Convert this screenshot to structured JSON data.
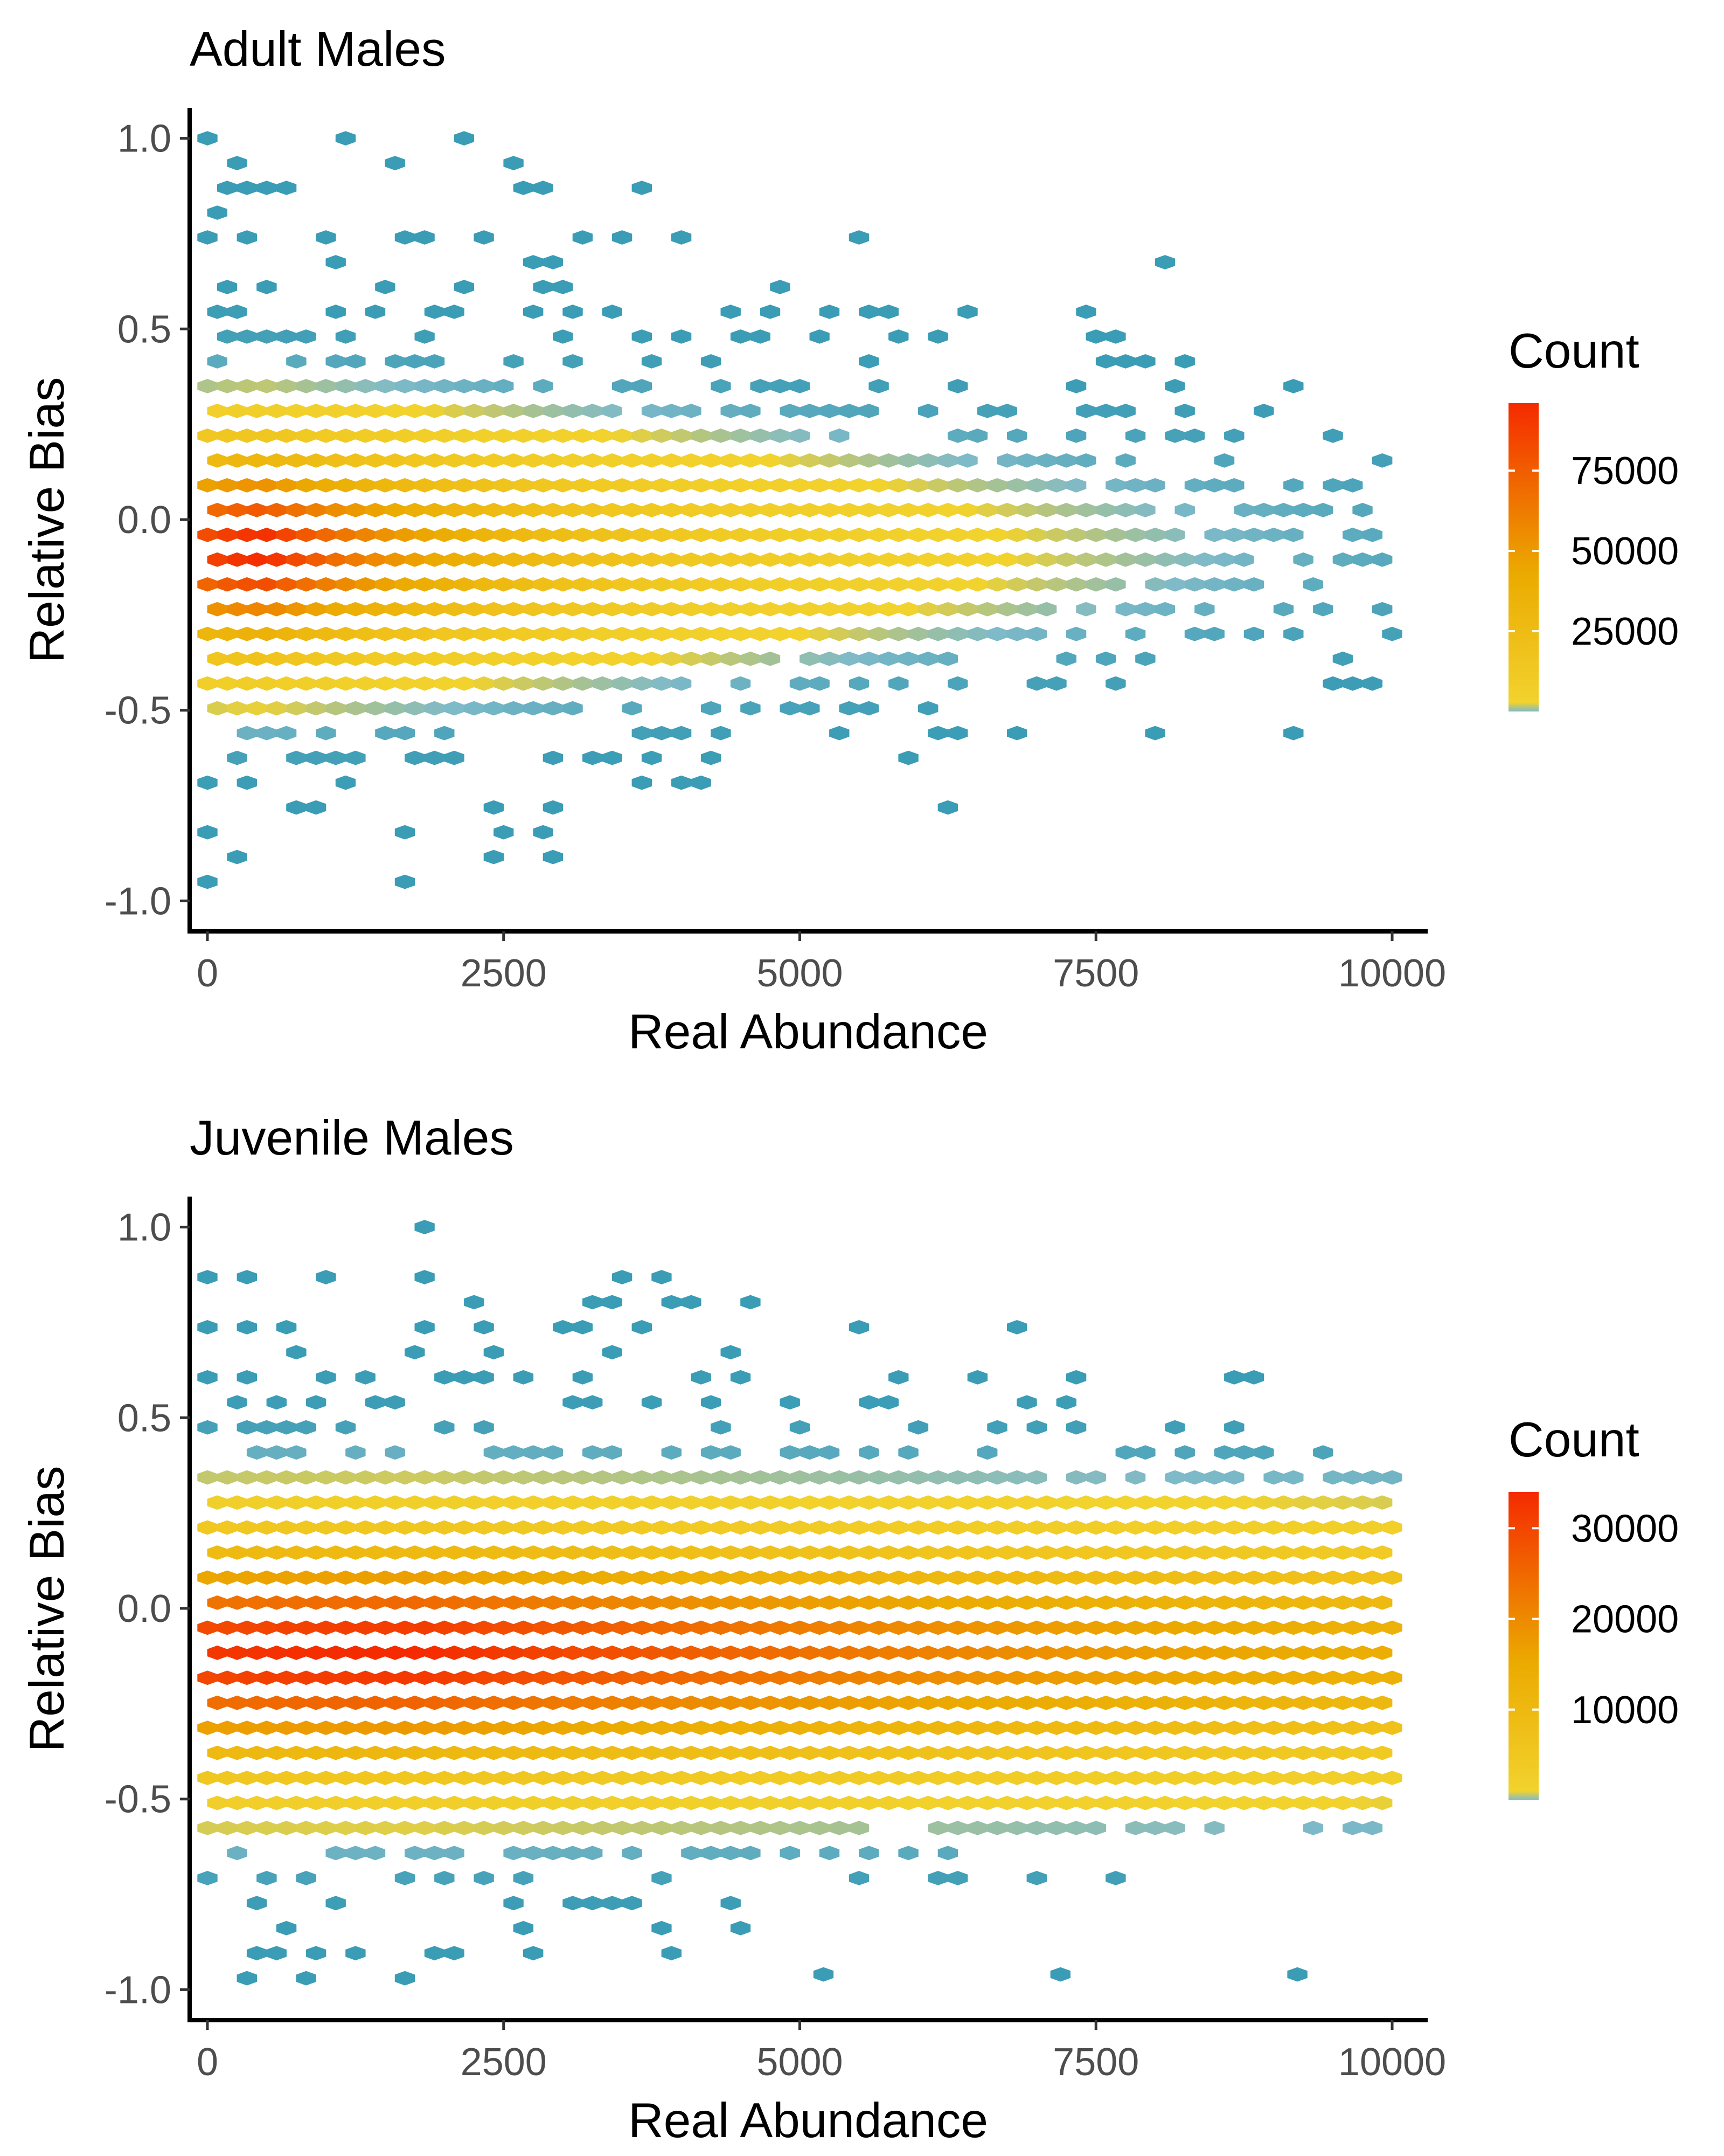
{
  "chart_data": [
    {
      "type": "hexbin",
      "title": "Adult Males",
      "xlabel": "Real Abundance",
      "ylabel": "Relative Bias",
      "xlim": [
        -150,
        10300
      ],
      "ylim": [
        -1.08,
        1.08
      ],
      "x_ticks": [
        0,
        2500,
        5000,
        7500,
        10000
      ],
      "y_ticks": [
        -1.0,
        -0.5,
        0.0,
        0.5,
        1.0
      ],
      "x_tick_labels": [
        "0",
        "2500",
        "5000",
        "7500",
        "10000"
      ],
      "y_tick_labels": [
        "-1.0",
        "-0.5",
        "0.0",
        "0.5",
        "1.0"
      ],
      "legend": {
        "title": "Count",
        "placement": "right",
        "min": 0,
        "max": 96000,
        "ticks": [
          25000,
          50000,
          75000
        ],
        "tick_labels": [
          "25000",
          "50000",
          "75000"
        ]
      },
      "colors": {
        "low": "#3a9cb5",
        "mid_low": "#7fbac8",
        "mid": "#f2d22d",
        "mid_high": "#ebaa00",
        "high": "#f52a00"
      },
      "data_extent": {
        "x": [
          0,
          10000
        ],
        "y": [
          -0.95,
          1.0
        ]
      },
      "density_peak": {
        "x": 500,
        "y": -0.08,
        "count": 96000
      },
      "density_spread": {
        "x_scale": 1800,
        "y_scale": 0.22
      }
    },
    {
      "type": "hexbin",
      "title": "Juvenile Males",
      "xlabel": "Real Abundance",
      "ylabel": "Relative Bias",
      "xlim": [
        -150,
        10300
      ],
      "ylim": [
        -1.08,
        1.08
      ],
      "x_ticks": [
        0,
        2500,
        5000,
        7500,
        10000
      ],
      "y_ticks": [
        -1.0,
        -0.5,
        0.0,
        0.5,
        1.0
      ],
      "x_tick_labels": [
        "0",
        "2500",
        "5000",
        "7500",
        "10000"
      ],
      "y_tick_labels": [
        "-1.0",
        "-0.5",
        "0.0",
        "0.5",
        "1.0"
      ],
      "legend": {
        "title": "Count",
        "placement": "right",
        "min": 0,
        "max": 34000,
        "ticks": [
          10000,
          20000,
          30000
        ],
        "tick_labels": [
          "10000",
          "20000",
          "30000"
        ]
      },
      "colors": {
        "low": "#3a9cb5",
        "mid_low": "#7fbac8",
        "mid": "#f2d22d",
        "mid_high": "#ebaa00",
        "high": "#f52a00"
      },
      "data_extent": {
        "x": [
          0,
          10000
        ],
        "y": [
          -0.97,
          1.0
        ]
      },
      "density_peak": {
        "x": 1800,
        "y": -0.12,
        "count": 34000
      },
      "density_spread": {
        "x_scale": 9000,
        "y_scale": 0.24
      },
      "outliers": [
        {
          "x": 5200,
          "y": -0.96
        },
        {
          "x": 7200,
          "y": -0.96
        },
        {
          "x": 9200,
          "y": -0.96
        }
      ]
    }
  ]
}
